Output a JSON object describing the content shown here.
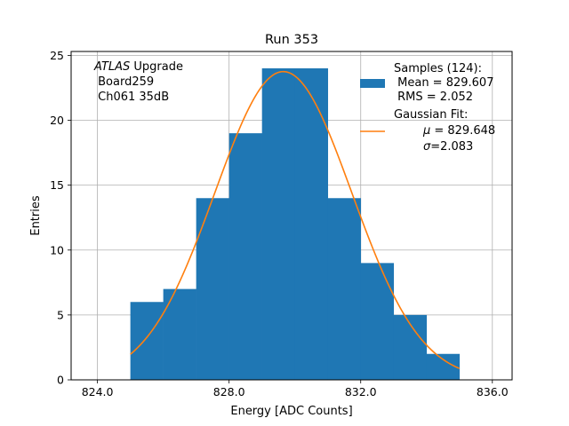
{
  "chart_data": {
    "type": "bar",
    "title": "Run 353",
    "xlabel": "Energy [ADC Counts]",
    "ylabel": "Entries",
    "xlim": [
      823.2,
      836.6
    ],
    "ylim": [
      0,
      25.3
    ],
    "grid": true,
    "x_ticks": [
      824.0,
      828.0,
      832.0,
      836.0
    ],
    "x_tick_labels": [
      "824.0",
      "828.0",
      "832.0",
      "836.0"
    ],
    "y_ticks": [
      0,
      5,
      10,
      15,
      20,
      25
    ],
    "y_tick_labels": [
      "0",
      "5",
      "10",
      "15",
      "20",
      "25"
    ],
    "bins": [
      {
        "x0": 825,
        "x1": 826,
        "count": 6
      },
      {
        "x0": 826,
        "x1": 827,
        "count": 7
      },
      {
        "x0": 827,
        "x1": 828,
        "count": 14
      },
      {
        "x0": 828,
        "x1": 829,
        "count": 19
      },
      {
        "x0": 829,
        "x1": 830,
        "count": 24
      },
      {
        "x0": 830,
        "x1": 831,
        "count": 24
      },
      {
        "x0": 831,
        "x1": 832,
        "count": 14
      },
      {
        "x0": 832,
        "x1": 833,
        "count": 9
      },
      {
        "x0": 833,
        "x1": 834,
        "count": 5
      },
      {
        "x0": 834,
        "x1": 835,
        "count": 2
      }
    ],
    "fit": {
      "type": "gaussian",
      "mu": 829.648,
      "sigma": 2.083,
      "amplitude": 23.75,
      "x_range": [
        825,
        835
      ]
    },
    "annotation_lines": [
      {
        "italic": "ATLAS",
        "rest": " Upgrade"
      },
      {
        "italic": "",
        "rest": " Board259"
      },
      {
        "italic": "",
        "rest": " Ch061 35dB"
      }
    ],
    "legend": {
      "placement": "top-right",
      "histogram_lines": [
        "Samples (124):",
        " Mean = 829.607",
        " RMS = 2.052"
      ],
      "fit_title": "Gaussian Fit:",
      "fit_mu_value": " = 829.648",
      "fit_sigma_value": "=2.083"
    },
    "colors": {
      "histogram": "#1f77b4",
      "fit": "#ff7f0e",
      "grid": "#b0b0b0",
      "axes": "#000000"
    }
  }
}
